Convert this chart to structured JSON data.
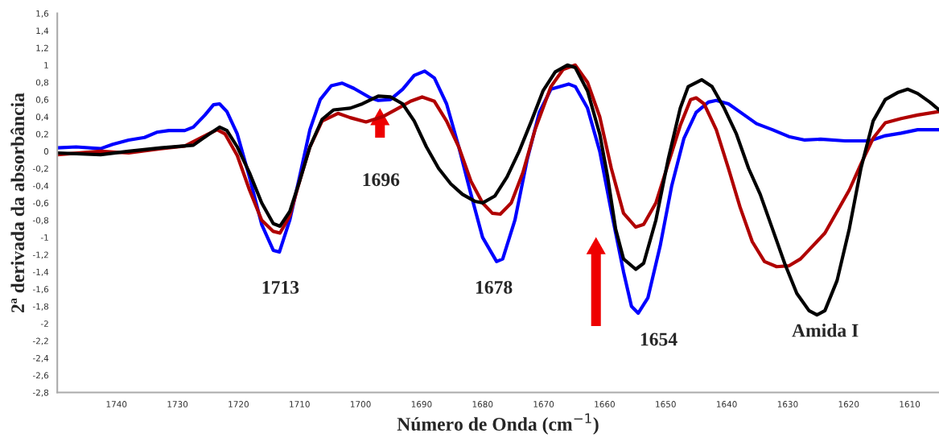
{
  "chart_data": {
    "type": "line",
    "xlabel": "Número de Onda (cm$^{−1}$)",
    "ylabel": "2ª derivada da absorbância",
    "xlim": [
      1749.7,
      1605.2
    ],
    "xticks": [
      1740,
      1730,
      1720,
      1710,
      1700,
      1690,
      1680,
      1670,
      1660,
      1650,
      1640,
      1630,
      1620,
      1610
    ],
    "ylim": [
      -2.8,
      1.6
    ],
    "yticks": [
      {
        "value": 1.6,
        "label": "1,6"
      },
      {
        "value": 1.4,
        "label": "1,4"
      },
      {
        "value": 1.2,
        "label": "1,2"
      },
      1,
      {
        "value": 0.8,
        "label": "0,8"
      },
      {
        "value": 0.6,
        "label": "0,6"
      },
      {
        "value": 0.4,
        "label": "0,4"
      },
      {
        "value": 0.2,
        "label": "0,2"
      },
      0,
      {
        "value": -0.2,
        "label": "-0,2"
      },
      {
        "value": -0.4,
        "label": "-0,4"
      },
      {
        "value": -0.6,
        "label": "-0,6"
      },
      {
        "value": -0.8,
        "label": "-0,8"
      },
      -1,
      {
        "value": -1.2,
        "label": "-1,2"
      },
      {
        "value": -1.4,
        "label": "-1,4"
      },
      {
        "value": -1.6,
        "label": "-1,6"
      },
      {
        "value": -1.8,
        "label": "-1,8"
      },
      -2,
      {
        "value": -2.2,
        "label": "-2,2"
      },
      {
        "value": -2.4,
        "label": "-2,4"
      },
      {
        "value": -2.6,
        "label": "-2,6"
      },
      {
        "value": -2.8,
        "label": "-2,8"
      }
    ],
    "grid": false,
    "legend": false,
    "marker": "none",
    "line_style": "solid",
    "annotations": [
      "1713",
      "1696",
      "1678",
      "1654",
      "Amida I"
    ],
    "series": [
      {
        "color": "#0000ff",
        "x": [
          1749.7,
          1746.6,
          1742.6,
          1740.6,
          1738.0,
          1735.4,
          1733.4,
          1731.4,
          1728.8,
          1727.4,
          1725.5,
          1724.1,
          1723.1,
          1721.9,
          1720.2,
          1718.2,
          1716.2,
          1714.3,
          1713.3,
          1711.6,
          1710.0,
          1708.3,
          1706.6,
          1704.8,
          1703.0,
          1701.1,
          1698.4,
          1697.1,
          1695.1,
          1693.1,
          1691.2,
          1689.5,
          1687.9,
          1685.9,
          1683.9,
          1681.9,
          1680.0,
          1677.7,
          1676.7,
          1674.7,
          1672.7,
          1670.7,
          1668.8,
          1665.9,
          1664.8,
          1662.8,
          1660.8,
          1658.9,
          1656.9,
          1655.6,
          1654.5,
          1652.9,
          1650.9,
          1649.0,
          1647.0,
          1645.0,
          1643.0,
          1641.7,
          1639.7,
          1637.1,
          1635.1,
          1632.5,
          1629.8,
          1627.2,
          1624.6,
          1620.6,
          1616.6,
          1614.0,
          1611.4,
          1608.7,
          1605.2
        ],
        "values": [
          0.04,
          0.05,
          0.03,
          0.08,
          0.13,
          0.16,
          0.22,
          0.24,
          0.24,
          0.28,
          0.42,
          0.54,
          0.55,
          0.46,
          0.2,
          -0.3,
          -0.85,
          -1.15,
          -1.17,
          -0.8,
          -0.3,
          0.25,
          0.6,
          0.76,
          0.79,
          0.73,
          0.62,
          0.59,
          0.6,
          0.72,
          0.88,
          0.93,
          0.85,
          0.55,
          0.05,
          -0.5,
          -1.0,
          -1.28,
          -1.25,
          -0.8,
          -0.1,
          0.45,
          0.72,
          0.78,
          0.75,
          0.5,
          0.0,
          -0.7,
          -1.4,
          -1.8,
          -1.88,
          -1.7,
          -1.1,
          -0.4,
          0.15,
          0.45,
          0.57,
          0.59,
          0.55,
          0.42,
          0.32,
          0.25,
          0.17,
          0.13,
          0.14,
          0.12,
          0.12,
          0.18,
          0.21,
          0.25,
          0.25
        ]
      },
      {
        "color": "#b00000",
        "x": [
          1749.7,
          1742.6,
          1738.0,
          1732.7,
          1728.8,
          1725.5,
          1723.5,
          1722.2,
          1720.2,
          1718.2,
          1716.2,
          1714.3,
          1713.2,
          1711.6,
          1710.0,
          1708.3,
          1706.3,
          1703.7,
          1701.7,
          1699.1,
          1696.4,
          1693.8,
          1691.8,
          1689.9,
          1687.9,
          1685.9,
          1683.9,
          1681.9,
          1680.0,
          1678.4,
          1677.1,
          1675.3,
          1673.4,
          1671.4,
          1668.8,
          1666.8,
          1664.8,
          1662.8,
          1660.8,
          1658.9,
          1656.9,
          1654.9,
          1653.6,
          1651.6,
          1649.6,
          1647.6,
          1645.9,
          1645.0,
          1643.7,
          1641.7,
          1639.7,
          1637.8,
          1635.8,
          1633.8,
          1631.8,
          1629.8,
          1627.9,
          1625.9,
          1623.9,
          1621.9,
          1619.9,
          1618.0,
          1616.0,
          1614.0,
          1611.4,
          1608.7,
          1605.2
        ],
        "values": [
          -0.04,
          0.0,
          -0.02,
          0.03,
          0.06,
          0.18,
          0.25,
          0.2,
          -0.05,
          -0.45,
          -0.8,
          -0.93,
          -0.95,
          -0.75,
          -0.35,
          0.05,
          0.35,
          0.44,
          0.39,
          0.34,
          0.4,
          0.5,
          0.58,
          0.63,
          0.58,
          0.35,
          0.05,
          -0.35,
          -0.6,
          -0.72,
          -0.73,
          -0.6,
          -0.25,
          0.25,
          0.75,
          0.95,
          1.0,
          0.8,
          0.4,
          -0.2,
          -0.72,
          -0.88,
          -0.85,
          -0.6,
          -0.15,
          0.3,
          0.6,
          0.62,
          0.55,
          0.25,
          -0.2,
          -0.65,
          -1.05,
          -1.28,
          -1.34,
          -1.33,
          -1.25,
          -1.1,
          -0.95,
          -0.7,
          -0.45,
          -0.15,
          0.15,
          0.33,
          0.38,
          0.42,
          0.46
        ]
      },
      {
        "color": "#000000",
        "x": [
          1749.7,
          1742.6,
          1738.0,
          1732.7,
          1727.4,
          1724.8,
          1723.1,
          1721.9,
          1720.2,
          1718.2,
          1716.2,
          1714.3,
          1713.2,
          1711.6,
          1710.0,
          1708.3,
          1706.3,
          1704.4,
          1701.7,
          1699.7,
          1697.1,
          1695.1,
          1693.1,
          1691.2,
          1689.2,
          1687.2,
          1685.2,
          1683.3,
          1681.3,
          1680.0,
          1678.0,
          1676.0,
          1674.0,
          1672.0,
          1670.1,
          1668.1,
          1666.1,
          1664.8,
          1662.8,
          1660.8,
          1659.5,
          1658.2,
          1656.9,
          1654.9,
          1653.6,
          1651.6,
          1649.6,
          1647.6,
          1646.3,
          1644.1,
          1642.4,
          1640.4,
          1638.4,
          1636.4,
          1634.5,
          1632.5,
          1630.5,
          1628.5,
          1626.5,
          1625.2,
          1623.9,
          1621.9,
          1619.9,
          1618.0,
          1616.0,
          1614.0,
          1612.0,
          1610.3,
          1608.7,
          1606.7,
          1605.2
        ],
        "values": [
          -0.02,
          -0.04,
          0.0,
          0.04,
          0.07,
          0.2,
          0.28,
          0.24,
          0.05,
          -0.25,
          -0.6,
          -0.84,
          -0.87,
          -0.7,
          -0.35,
          0.05,
          0.37,
          0.48,
          0.5,
          0.55,
          0.64,
          0.63,
          0.55,
          0.35,
          0.05,
          -0.2,
          -0.38,
          -0.5,
          -0.58,
          -0.6,
          -0.52,
          -0.3,
          0.0,
          0.35,
          0.7,
          0.92,
          1.0,
          0.97,
          0.7,
          0.2,
          -0.3,
          -0.9,
          -1.25,
          -1.37,
          -1.3,
          -0.8,
          -0.1,
          0.5,
          0.75,
          0.83,
          0.75,
          0.5,
          0.2,
          -0.2,
          -0.5,
          -0.9,
          -1.3,
          -1.65,
          -1.85,
          -1.9,
          -1.85,
          -1.5,
          -0.9,
          -0.2,
          0.35,
          0.6,
          0.68,
          0.72,
          0.67,
          0.57,
          0.48
        ]
      }
    ]
  }
}
